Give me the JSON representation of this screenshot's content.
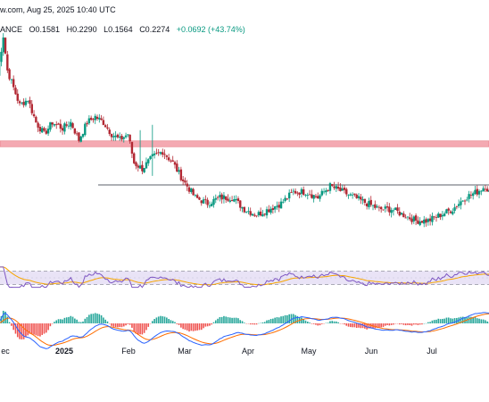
{
  "header": {
    "source_date": "w.com, Aug 25, 2025 10:40 UTC",
    "symbol_suffix": "ANCE",
    "open": "O0.1581",
    "high": "H0.2290",
    "low": "L0.1564",
    "close": "C0.2274",
    "change": "+0.0692 (+43.74%)"
  },
  "x_axis": {
    "labels": [
      "ec",
      "2025",
      "Feb",
      "Mar",
      "Apr",
      "May",
      "Jun",
      "Jul"
    ]
  },
  "colors": {
    "up": "#089981",
    "down": "#b22833",
    "resistance_zone": "#f4a9b2",
    "rsi_line": "#7e57c2",
    "rsi_ma": "#f7a600",
    "rsi_band": "#e9e3f6",
    "macd_line": "#2962ff",
    "signal_line": "#ff6d00",
    "hist_up": "#26a69a",
    "hist_down": "#ef5350"
  },
  "chart_data": [
    {
      "type": "candlestick",
      "panel": "price",
      "horizontal_lines": [
        0.162
      ],
      "resistance_zone": [
        0.228,
        0.238
      ],
      "ylim": [
        0.08,
        0.42
      ],
      "path_points": [
        [
          "2024-12-01",
          0.35
        ],
        [
          "2024-12-04",
          0.42
        ],
        [
          "2024-12-06",
          0.36
        ],
        [
          "2024-12-09",
          0.33
        ],
        [
          "2024-12-12",
          0.3
        ],
        [
          "2024-12-16",
          0.31
        ],
        [
          "2024-12-20",
          0.27
        ],
        [
          "2024-12-24",
          0.25
        ],
        [
          "2024-12-28",
          0.27
        ],
        [
          "2025-01-02",
          0.26
        ],
        [
          "2025-01-06",
          0.27
        ],
        [
          "2025-01-10",
          0.24
        ],
        [
          "2025-01-14",
          0.27
        ],
        [
          "2025-01-18",
          0.28
        ],
        [
          "2025-01-22",
          0.27
        ],
        [
          "2025-01-26",
          0.25
        ],
        [
          "2025-01-30",
          0.24
        ],
        [
          "2025-02-03",
          0.25
        ],
        [
          "2025-02-06",
          0.2
        ],
        [
          "2025-02-10",
          0.19
        ],
        [
          "2025-02-15",
          0.21
        ],
        [
          "2025-02-20",
          0.22
        ],
        [
          "2025-02-25",
          0.2
        ],
        [
          "2025-03-02",
          0.17
        ],
        [
          "2025-03-08",
          0.14
        ],
        [
          "2025-03-14",
          0.13
        ],
        [
          "2025-03-20",
          0.14
        ],
        [
          "2025-03-26",
          0.14
        ],
        [
          "2025-04-01",
          0.12
        ],
        [
          "2025-04-07",
          0.11
        ],
        [
          "2025-04-13",
          0.12
        ],
        [
          "2025-04-19",
          0.13
        ],
        [
          "2025-04-25",
          0.15
        ],
        [
          "2025-05-01",
          0.15
        ],
        [
          "2025-05-07",
          0.14
        ],
        [
          "2025-05-13",
          0.16
        ],
        [
          "2025-05-19",
          0.15
        ],
        [
          "2025-05-25",
          0.14
        ],
        [
          "2025-05-31",
          0.13
        ],
        [
          "2025-06-06",
          0.12
        ],
        [
          "2025-06-12",
          0.12
        ],
        [
          "2025-06-18",
          0.11
        ],
        [
          "2025-06-24",
          0.1
        ],
        [
          "2025-06-30",
          0.1
        ],
        [
          "2025-07-06",
          0.11
        ],
        [
          "2025-07-12",
          0.12
        ],
        [
          "2025-07-18",
          0.14
        ],
        [
          "2025-07-24",
          0.15
        ],
        [
          "2025-07-28",
          0.16
        ],
        [
          "2025-08-01",
          0.14
        ],
        [
          "2025-08-05",
          0.15
        ]
      ]
    },
    {
      "type": "line",
      "panel": "rsi",
      "ylim": [
        0,
        100
      ],
      "band": [
        30,
        70
      ]
    },
    {
      "type": "line",
      "panel": "macd",
      "series_count": 2,
      "histogram": true
    }
  ]
}
